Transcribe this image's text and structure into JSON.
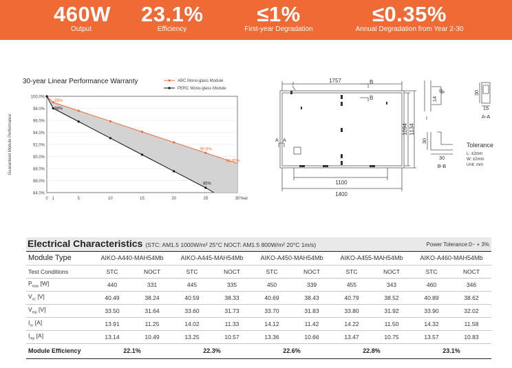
{
  "banner": {
    "color": "#ef6a34",
    "items": [
      {
        "big": "460W",
        "small": "Output"
      },
      {
        "big": "23.1%",
        "small": "Efficiency"
      },
      {
        "big": "≤1%",
        "small": "First-year Degradation"
      },
      {
        "big": "≤0.35%",
        "small": "Annual Degradation from Year 2-30"
      }
    ]
  },
  "chart_data": {
    "type": "line",
    "title": "30-year Linear Performance Warranty",
    "ylabel": "Guaranteed Module Performance",
    "xlabel": "30Year",
    "xlim": [
      0,
      30
    ],
    "ylim": [
      84,
      100
    ],
    "xticks": [
      "0",
      "1",
      "5",
      "10",
      "15",
      "20",
      "25",
      "30Year"
    ],
    "yticks": [
      "100.0%",
      "98.0%",
      "96.0%",
      "94.0%",
      "92.0%",
      "90.0%",
      "88.0%",
      "86.0%",
      "84.0%"
    ],
    "series": [
      {
        "name": "ABC Mono-glass Module",
        "color": "#ef6a34",
        "x": [
          0,
          1,
          5,
          10,
          15,
          20,
          25,
          30
        ],
        "y": [
          100,
          99,
          97.6,
          95.85,
          94.1,
          92.35,
          90.6,
          88.85
        ]
      },
      {
        "name": "PERC Mono-glass Module",
        "color": "#111111",
        "x": [
          0,
          1,
          5,
          10,
          15,
          20,
          25,
          26.3
        ],
        "y": [
          100,
          98,
          95.8,
          93.05,
          90.3,
          87.55,
          84.8,
          84.0
        ]
      }
    ],
    "annotations": [
      "99%",
      "98%",
      "90.6%",
      "88.85%",
      "85%"
    ]
  },
  "drawing": {
    "top_dim": "1757",
    "section_mark_top": "B",
    "section_mark_bottom": "B",
    "side_mark_a1": "A",
    "side_mark_a2": "A",
    "mark_i": "I",
    "height_inner": "1094",
    "height_outer": "1134",
    "bottom_inner": "1100",
    "bottom_outer": "1400",
    "aa": {
      "h1": "14",
      "h2": "9",
      "w": "30",
      "b": "15",
      "label": "A-A"
    },
    "bb": {
      "h": "30",
      "w": "30",
      "label": "B-B"
    },
    "tolerance": {
      "title": "Tolerance",
      "l": "L: ±2mm",
      "w": "W: ±2mm",
      "unit": "Unit: mm"
    }
  },
  "electrical": {
    "title": "Electrical Characteristics",
    "conditions": "(STC: AM1.5 1000W/m² 25°C  NOCT: AM1.5 800W/m² 20°C 1m/s)",
    "tolerance": "Power Tolerance:0~ + 3%",
    "module_type_label": "Module Type",
    "models": [
      "AIKO-A440-MAH54Mb",
      "AIKO-A445-MAH54Mb",
      "AIKO-A450-MAH54Mb",
      "AIKO-A455-MAH54Mb",
      "AIKO-A460-MAH54Mb"
    ],
    "test_conditions_label": "Test Conditions",
    "stc": "STC",
    "noct": "NOCT",
    "rows": [
      {
        "sym": "P",
        "sub": "max",
        "unit": " [W]",
        "values": [
          "440",
          "331",
          "445",
          "335",
          "450",
          "339",
          "455",
          "343",
          "460",
          "346"
        ]
      },
      {
        "sym": "V",
        "sub": "oc",
        "unit": " [V]",
        "values": [
          "40.49",
          "38.24",
          "40.59",
          "38.33",
          "40.69",
          "38.43",
          "40.79",
          "38.52",
          "40.89",
          "38.62"
        ]
      },
      {
        "sym": "V",
        "sub": "mp",
        "unit": " [V]",
        "values": [
          "33.50",
          "31.64",
          "33.60",
          "31.73",
          "33.70",
          "31.83",
          "33.80",
          "31.92",
          "33.90",
          "32.02"
        ]
      },
      {
        "sym": "I",
        "sub": "sc",
        "unit": " [A]",
        "values": [
          "13.91",
          "11.25",
          "14.02",
          "11.33",
          "14.12",
          "11.42",
          "14.22",
          "11.50",
          "14.32",
          "11.58"
        ]
      },
      {
        "sym": "I",
        "sub": "mp",
        "unit": " [A]",
        "values": [
          "13.14",
          "10.49",
          "13.25",
          "10.57",
          "13.36",
          "10.66",
          "13.47",
          "10.75",
          "13.57",
          "10.83"
        ]
      }
    ],
    "efficiency_label": "Module Efficiency",
    "efficiency": [
      "22.1%",
      "22.3%",
      "22.6%",
      "22.8%",
      "23.1%"
    ]
  }
}
